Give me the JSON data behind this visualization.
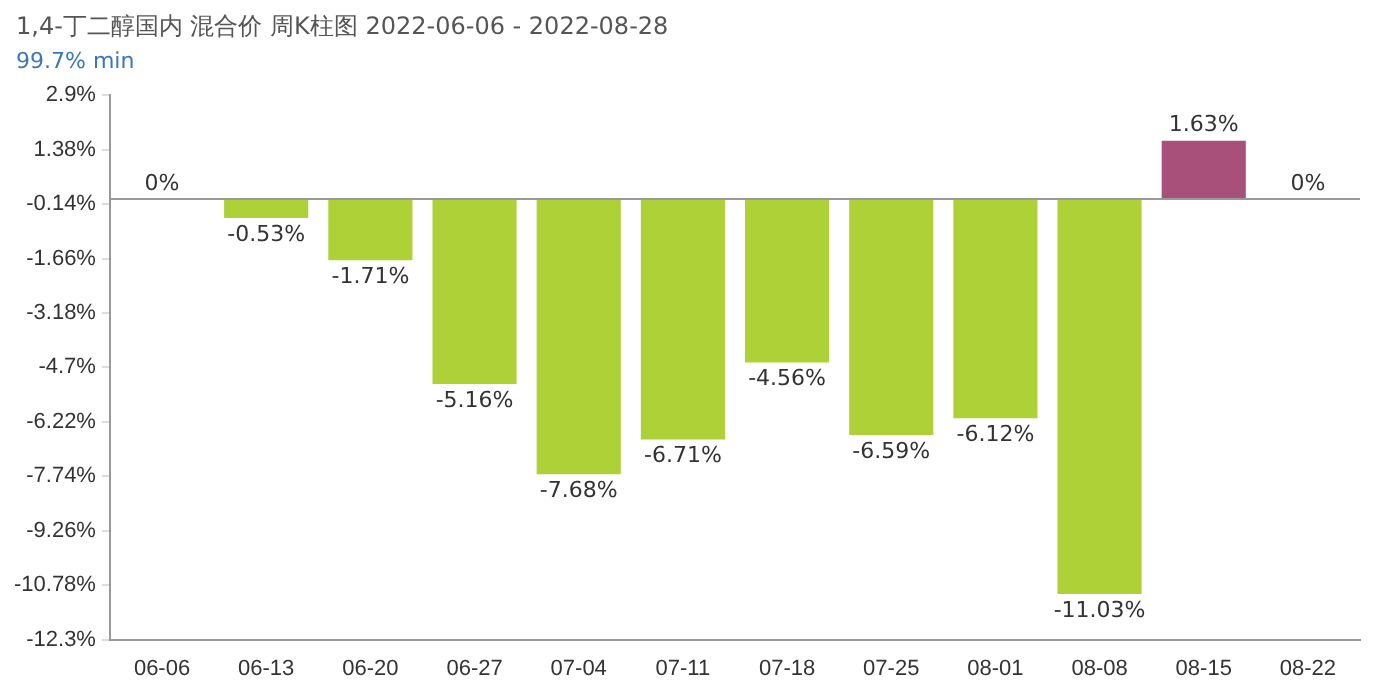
{
  "chart_data": {
    "type": "bar",
    "title": "1,4-丁二醇国内 混合价 周K柱图 2022-06-06 - 2022-08-28",
    "subtitle": "99.7% min",
    "categories": [
      "06-06",
      "06-13",
      "06-20",
      "06-27",
      "07-04",
      "07-11",
      "07-18",
      "07-25",
      "08-01",
      "08-08",
      "08-15",
      "08-22"
    ],
    "values": [
      0,
      -0.53,
      -1.71,
      -5.16,
      -7.68,
      -6.71,
      -4.56,
      -6.59,
      -6.12,
      -11.03,
      1.63,
      0
    ],
    "colors": [
      "#add136",
      "#add136",
      "#add136",
      "#add136",
      "#add136",
      "#add136",
      "#add136",
      "#add136",
      "#add136",
      "#add136",
      "#a8507a",
      "#add136"
    ],
    "value_labels": [
      "0%",
      "-0.53%",
      "-1.71%",
      "-5.16%",
      "-7.68%",
      "-6.71%",
      "-4.56%",
      "-6.59%",
      "-6.12%",
      "-11.03%",
      "1.63%",
      "0%"
    ],
    "ylim": [
      -12.3,
      2.9
    ],
    "yticks": [
      {
        "value": 2.9,
        "label": "2.9%"
      },
      {
        "value": 1.38,
        "label": "1.38%"
      },
      {
        "value": -0.14,
        "label": "-0.14%"
      },
      {
        "value": -1.66,
        "label": "-1.66%"
      },
      {
        "value": -3.18,
        "label": "-3.18%"
      },
      {
        "value": -4.7,
        "label": "-4.7%"
      },
      {
        "value": -6.22,
        "label": "-6.22%"
      },
      {
        "value": -7.74,
        "label": "-7.74%"
      },
      {
        "value": -9.26,
        "label": "-9.26%"
      },
      {
        "value": -10.78,
        "label": "-10.78%"
      },
      {
        "value": -12.3,
        "label": "-12.3%"
      }
    ],
    "ref_lines": [
      {
        "axis": "y",
        "value": 0,
        "color": "#999999"
      }
    ],
    "grid": false,
    "legend": false
  }
}
